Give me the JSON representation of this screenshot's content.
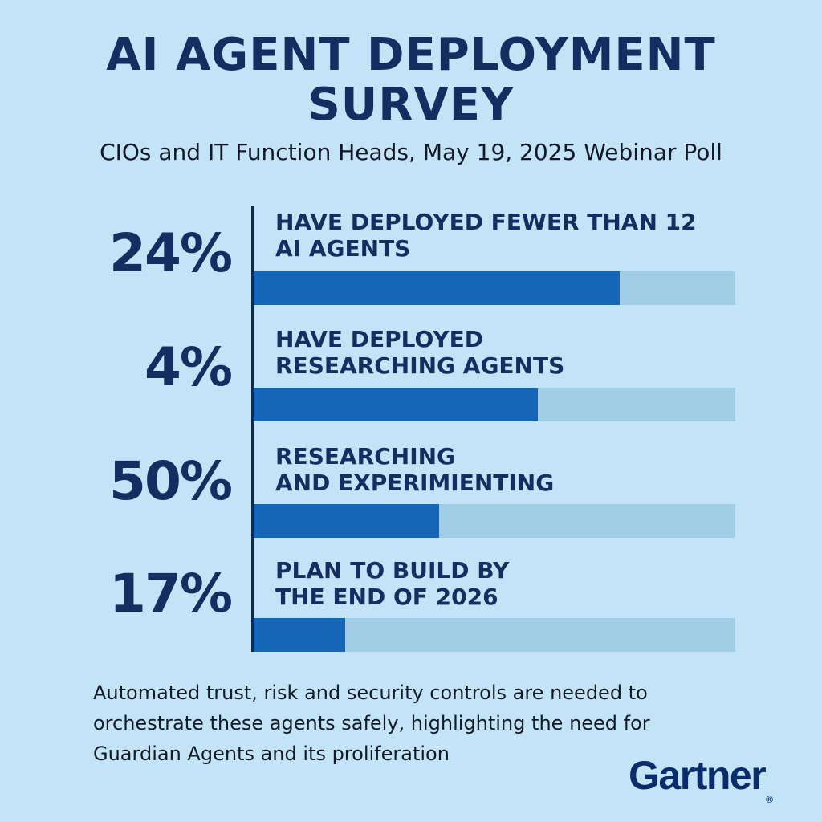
{
  "chart_data": {
    "type": "bar",
    "title_lines": [
      "AI AGENT DEPLOYMENT",
      "SURVEY"
    ],
    "subtitle": "CIOs and IT Function Heads, May 19, 2025 Webinar Poll",
    "xlabel": "",
    "ylabel": "",
    "items": [
      {
        "value_label": "24%",
        "label_lines": [
          "HAVE DEPLOYED FEWER THAN 12",
          "AI AGENTS"
        ],
        "bar_fill_fraction": 0.76
      },
      {
        "value_label": "4%",
        "label_lines": [
          "HAVE DEPLOYED",
          "RESEARCHING AGENTS"
        ],
        "bar_fill_fraction": 0.59
      },
      {
        "value_label": "50%",
        "label_lines": [
          "RESEARCHING",
          "AND EXPERIMIENTING"
        ],
        "bar_fill_fraction": 0.385
      },
      {
        "value_label": "17%",
        "label_lines": [
          "PLAN TO BUILD BY",
          "THE END OF 2026"
        ],
        "bar_fill_fraction": 0.19
      }
    ],
    "colors": {
      "background": "#c2e4f6",
      "bar_fill": "#1565b8",
      "bar_track": "#9fcde6",
      "text_dark": "#142e62"
    }
  },
  "footnote_lines": [
    "Automated trust, risk and security controls are needed to",
    "orchestrate these agents safely, highlighting the need for",
    "Guardian Agents and its proliferation"
  ],
  "logo": {
    "text": "Gartner",
    "mark": "®"
  }
}
